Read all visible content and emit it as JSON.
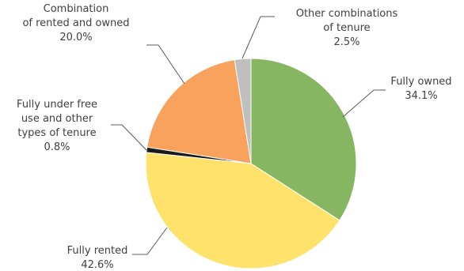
{
  "chart_data": {
    "type": "pie",
    "title": "",
    "start_angle_deg": 0,
    "direction": "clockwise",
    "slices": [
      {
        "label_lines": [
          "Fully owned"
        ],
        "value": 34.1,
        "value_text": "34.1%",
        "color": "#86b661"
      },
      {
        "label_lines": [
          "Fully rented"
        ],
        "value": 42.6,
        "value_text": "42.6%",
        "color": "#ffe26b"
      },
      {
        "label_lines": [
          "Fully under free",
          "use and other",
          "types of tenure"
        ],
        "value": 0.8,
        "value_text": "0.8%",
        "color": "#1a1a1a"
      },
      {
        "label_lines": [
          "Combination",
          "of rented and owned"
        ],
        "value": 20.0,
        "value_text": "20.0%",
        "color": "#f9a25e"
      },
      {
        "label_lines": [
          "Other combinations",
          "of tenure"
        ],
        "value": 2.5,
        "value_text": "2.5%",
        "color": "#bfbfbf"
      }
    ]
  }
}
